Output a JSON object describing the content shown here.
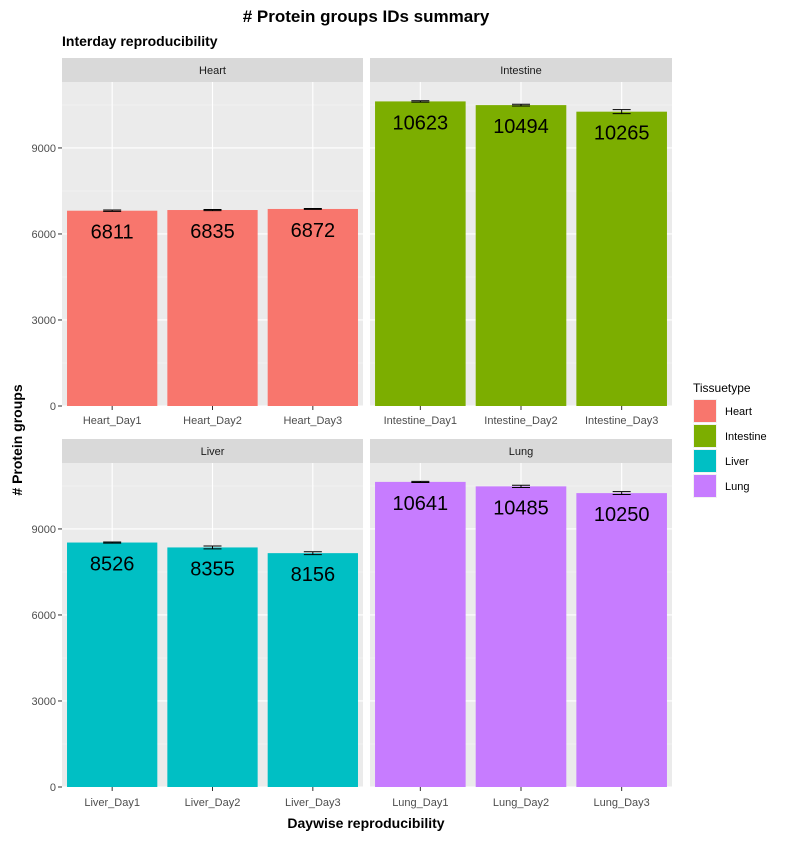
{
  "chart_data": {
    "type": "bar",
    "title": "# Protein groups IDs summary",
    "subtitle": "Interday reproducibility",
    "xlabel": "Daywise reproducibility",
    "ylabel": "# Protein groups",
    "ylim": [
      0,
      11300
    ],
    "yticks": [
      0,
      3000,
      6000,
      9000
    ],
    "grid": true,
    "legend": {
      "title": "Tissuetype",
      "position": "right",
      "entries": [
        {
          "name": "Heart",
          "color": "#F8766D"
        },
        {
          "name": "Intestine",
          "color": "#7CAE00"
        },
        {
          "name": "Liver",
          "color": "#00BFC4"
        },
        {
          "name": "Lung",
          "color": "#C77CFF"
        }
      ]
    },
    "facets": [
      {
        "name": "Heart",
        "color": "#F8766D",
        "categories": [
          "Heart_Day1",
          "Heart_Day2",
          "Heart_Day3"
        ],
        "values": [
          6811,
          6835,
          6872
        ],
        "errors": [
          25,
          20,
          15
        ]
      },
      {
        "name": "Intestine",
        "color": "#7CAE00",
        "categories": [
          "Intestine_Day1",
          "Intestine_Day2",
          "Intestine_Day3"
        ],
        "values": [
          10623,
          10494,
          10265
        ],
        "errors": [
          25,
          30,
          70
        ]
      },
      {
        "name": "Liver",
        "color": "#00BFC4",
        "categories": [
          "Liver_Day1",
          "Liver_Day2",
          "Liver_Day3"
        ],
        "values": [
          8526,
          8355,
          8156
        ],
        "errors": [
          20,
          50,
          50
        ]
      },
      {
        "name": "Lung",
        "color": "#C77CFF",
        "categories": [
          "Lung_Day1",
          "Lung_Day2",
          "Lung_Day3"
        ],
        "values": [
          10641,
          10485,
          10250
        ],
        "errors": [
          20,
          40,
          50
        ]
      }
    ]
  }
}
